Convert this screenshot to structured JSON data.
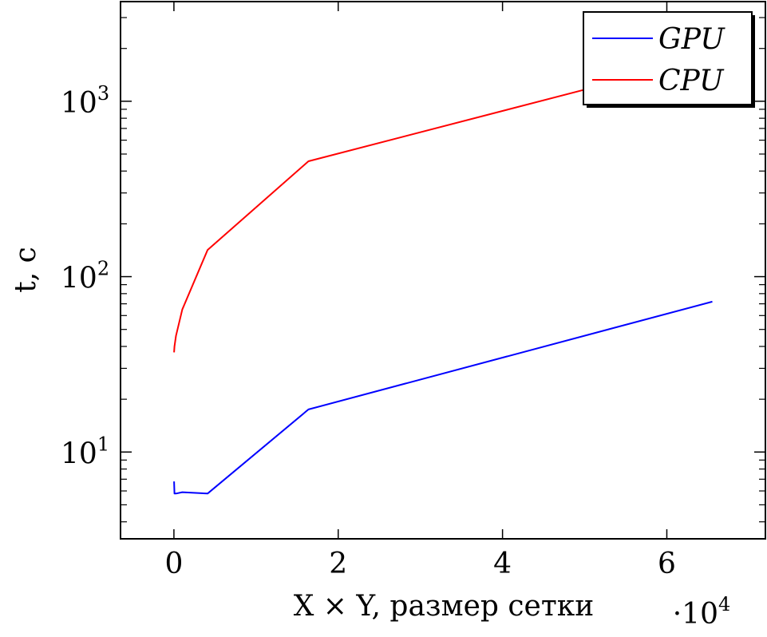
{
  "chart_data": {
    "type": "line",
    "title": "",
    "xlabel": "X × Y, размер сетки",
    "ylabel": "t, c",
    "x_multiplier_label": "·10^4",
    "xscale": "linear",
    "yscale": "log",
    "xlim": [
      -6500,
      72000
    ],
    "ylim": [
      3.2,
      3700
    ],
    "grid": false,
    "legend": "top-right",
    "x_ticks": [
      {
        "value": 0,
        "label": "0"
      },
      {
        "value": 20000,
        "label": "2"
      },
      {
        "value": 40000,
        "label": "4"
      },
      {
        "value": 60000,
        "label": "6"
      }
    ],
    "y_ticks": [
      {
        "value": 10,
        "base": "10",
        "exp": "1"
      },
      {
        "value": 100,
        "base": "10",
        "exp": "2"
      },
      {
        "value": 1000,
        "base": "10",
        "exp": "3"
      }
    ],
    "series": [
      {
        "name": "GPU",
        "color": "#0000ff",
        "x": [
          16,
          64,
          256,
          1024,
          4096,
          16384,
          65536
        ],
        "y": [
          6.8,
          5.8,
          5.8,
          5.9,
          5.8,
          17.5,
          72
        ]
      },
      {
        "name": "CPU",
        "color": "#ff0000",
        "x": [
          16,
          64,
          256,
          1024,
          4096,
          16384,
          65536
        ],
        "y": [
          37,
          40,
          46,
          65,
          142,
          455,
          1800
        ]
      }
    ]
  }
}
